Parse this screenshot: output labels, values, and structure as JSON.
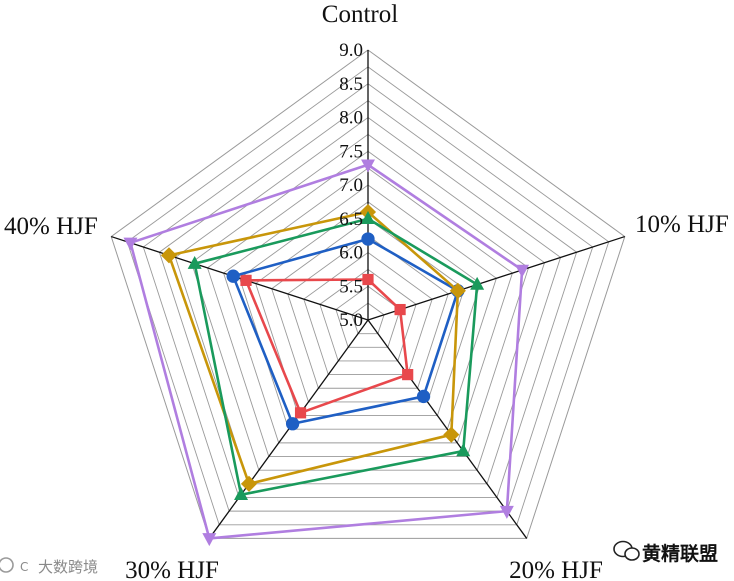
{
  "chart_data": {
    "type": "radar",
    "title": "",
    "axes": [
      "Control",
      "10% HJF",
      "20% HJF",
      "30% HJF",
      "40% HJF"
    ],
    "range": [
      5.0,
      9.0
    ],
    "ticks": [
      "5.0",
      "5.5",
      "6.0",
      "6.5",
      "7.0",
      "7.5",
      "8.0",
      "8.5",
      "9.0"
    ],
    "tick_values": [
      5.0,
      5.5,
      6.0,
      6.5,
      7.0,
      7.5,
      8.0,
      8.5,
      9.0
    ],
    "grid_rings": [
      5.25,
      5.5,
      5.75,
      6.0,
      6.25,
      6.5,
      6.75,
      7.0,
      7.25,
      7.5,
      7.75,
      8.0,
      8.25,
      8.5,
      8.75,
      9.0
    ],
    "legend": "none",
    "series": [
      {
        "name": "series-red",
        "color": "#e8484c",
        "marker": "square",
        "values": [
          5.6,
          5.5,
          6.0,
          6.7,
          6.9
        ]
      },
      {
        "name": "series-blue",
        "color": "#1f5fc4",
        "marker": "circle",
        "values": [
          6.2,
          6.4,
          6.4,
          6.9,
          7.1
        ]
      },
      {
        "name": "series-gold",
        "color": "#c8960a",
        "marker": "diamond",
        "values": [
          6.6,
          6.4,
          7.1,
          8.0,
          8.1
        ]
      },
      {
        "name": "series-green",
        "color": "#1a9a5c",
        "marker": "triangle-up",
        "values": [
          6.5,
          6.7,
          7.4,
          8.2,
          7.7
        ]
      },
      {
        "name": "series-purple",
        "color": "#b07ee0",
        "marker": "triangle-down",
        "values": [
          7.3,
          7.4,
          8.5,
          9.0,
          8.7
        ]
      }
    ]
  },
  "watermark": {
    "left_text": "大数跨境",
    "right_text": "黄精联盟"
  }
}
